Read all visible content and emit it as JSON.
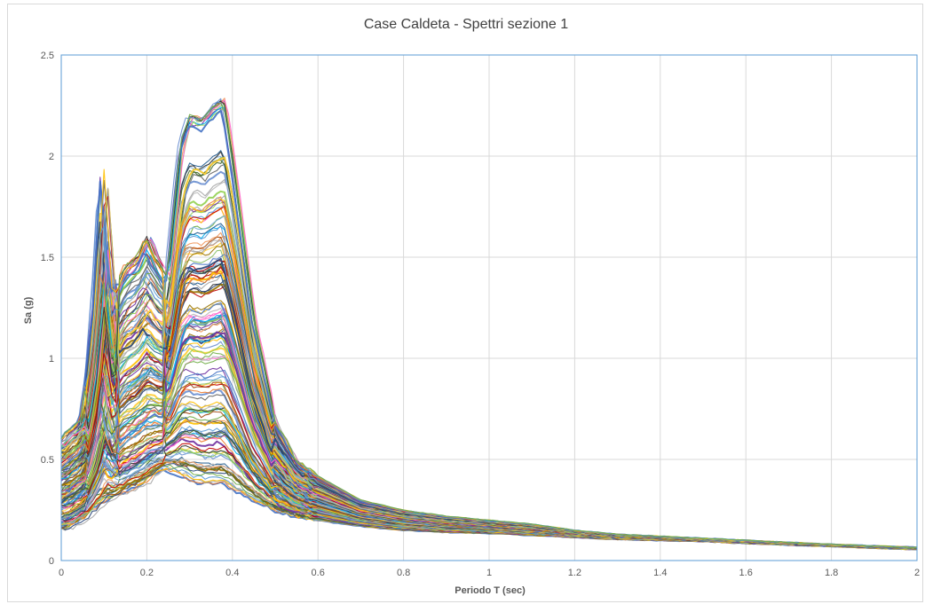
{
  "chart_data": {
    "type": "line",
    "title": "Case Caldeta - Spettri sezione 1",
    "xlabel": "Periodo T (sec)",
    "ylabel": "Sa (g)",
    "xlim": [
      0,
      2
    ],
    "ylim": [
      0,
      2.5
    ],
    "x_ticks": [
      "0",
      "0.2",
      "0.4",
      "0.6",
      "0.8",
      "1",
      "1.2",
      "1.4",
      "1.6",
      "1.8",
      "2"
    ],
    "y_ticks": [
      "0",
      "0.5",
      "1",
      "1.5",
      "2",
      "2.5"
    ],
    "grid": true,
    "legend": "none",
    "series_count": 150,
    "envelope": {
      "x": [
        0,
        0.02,
        0.05,
        0.08,
        0.1,
        0.12,
        0.15,
        0.18,
        0.2,
        0.22,
        0.25,
        0.28,
        0.3,
        0.33,
        0.36,
        0.38,
        0.4,
        0.45,
        0.5,
        0.55,
        0.6,
        0.7,
        0.8,
        0.9,
        1.0,
        1.1,
        1.2,
        1.3,
        1.4,
        1.5,
        1.6,
        1.8,
        2.0
      ],
      "upper": [
        0.6,
        0.65,
        0.7,
        1.2,
        1.93,
        1.3,
        1.45,
        1.5,
        1.6,
        1.5,
        1.4,
        2.05,
        2.2,
        2.18,
        2.25,
        2.28,
        2.0,
        1.2,
        0.7,
        0.5,
        0.42,
        0.3,
        0.25,
        0.22,
        0.2,
        0.18,
        0.15,
        0.13,
        0.12,
        0.11,
        0.1,
        0.08,
        0.065
      ],
      "lower": [
        0.15,
        0.16,
        0.2,
        0.25,
        0.28,
        0.3,
        0.33,
        0.36,
        0.38,
        0.42,
        0.45,
        0.42,
        0.4,
        0.38,
        0.38,
        0.38,
        0.36,
        0.3,
        0.25,
        0.22,
        0.2,
        0.17,
        0.15,
        0.14,
        0.135,
        0.125,
        0.115,
        0.105,
        0.1,
        0.095,
        0.085,
        0.07,
        0.055
      ]
    }
  },
  "palette": [
    "#4472c4",
    "#ed7d31",
    "#a5a5a5",
    "#ffc000",
    "#5b9bd5",
    "#70ad47",
    "#264478",
    "#9e480e",
    "#636363",
    "#997300",
    "#255e91",
    "#43682b",
    "#698ed0",
    "#f1975a",
    "#b7b7b7",
    "#ffcd33",
    "#7cafdd",
    "#8cc168",
    "#7030a0",
    "#c00000",
    "#00b0f0",
    "#92d050",
    "#ff66cc",
    "#333333"
  ]
}
